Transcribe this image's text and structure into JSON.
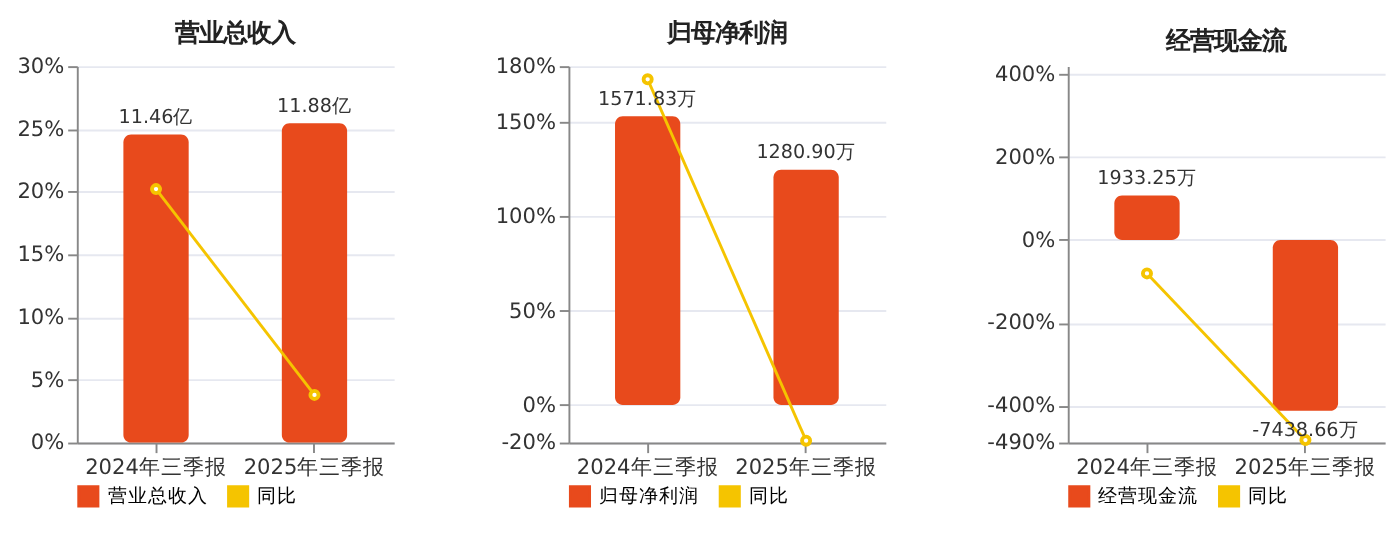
{
  "chart_data": [
    {
      "type": "bar",
      "title": "营业总收入",
      "categories": [
        "2024年三季报",
        "2025年三季报"
      ],
      "ylim": [
        0,
        30
      ],
      "yticks": [
        {
          "value": 0,
          "label": "0%"
        },
        {
          "value": 5,
          "label": "5%"
        },
        {
          "value": 10,
          "label": "10%"
        },
        {
          "value": 15,
          "label": "15%"
        },
        {
          "value": 20,
          "label": "20%"
        },
        {
          "value": 25,
          "label": "25%"
        },
        {
          "value": 30,
          "label": "30%"
        }
      ],
      "y2lim": [
        0,
        14
      ],
      "grid": "y",
      "legend": "bottom",
      "series": [
        {
          "name": "营业总收入",
          "axis": "y2",
          "color": "#e84a1c",
          "values": [
            11.46,
            11.88
          ],
          "value_labels": [
            "11.46亿",
            "11.88亿"
          ]
        },
        {
          "name": "同比",
          "type": "line",
          "axis": "y",
          "color": "#f5c400",
          "marker": "circle",
          "values": [
            20.2,
            3.8
          ]
        }
      ]
    },
    {
      "type": "bar",
      "title": "归母净利润",
      "categories": [
        "2024年三季报",
        "2025年三季报"
      ],
      "ylim": [
        -20,
        180
      ],
      "yticks": [
        {
          "value": -20,
          "label": "-20%"
        },
        {
          "value": 0,
          "label": "0%"
        },
        {
          "value": 50,
          "label": "50%"
        },
        {
          "value": 100,
          "label": "100%"
        },
        {
          "value": 150,
          "label": "150%"
        },
        {
          "value": 180,
          "label": "180%"
        }
      ],
      "y2lim": [
        -205,
        1845
      ],
      "grid": "y",
      "legend": "bottom",
      "series": [
        {
          "name": "归母净利润",
          "axis": "y2",
          "color": "#e84a1c",
          "values": [
            1571.83,
            1280.9
          ],
          "value_labels": [
            "1571.83万",
            "1280.90万"
          ]
        },
        {
          "name": "同比",
          "type": "line",
          "axis": "y",
          "color": "#f5c400",
          "marker": "circle",
          "values": [
            173,
            -19
          ]
        }
      ]
    },
    {
      "type": "bar",
      "title": "经营现金流",
      "categories": [
        "2024年三季报",
        "2025年三季报"
      ],
      "ylim": [
        -490,
        420
      ],
      "yticks": [
        {
          "value": -490,
          "label": "-490%"
        },
        {
          "value": -400,
          "label": "-400%"
        },
        {
          "value": -200,
          "label": "-200%"
        },
        {
          "value": 0,
          "label": "0%"
        },
        {
          "value": 200,
          "label": "200%"
        },
        {
          "value": 400,
          "label": "400%"
        }
      ],
      "y2lim": [
        -8820,
        7560
      ],
      "grid": "y",
      "legend": "bottom",
      "series": [
        {
          "name": "经营现金流",
          "axis": "y2",
          "color": "#e84a1c",
          "values": [
            1933.25,
            -7438.66
          ],
          "value_labels": [
            "1933.25万",
            "-7438.66万"
          ]
        },
        {
          "name": "同比",
          "type": "line",
          "axis": "y",
          "color": "#f5c400",
          "marker": "circle",
          "values": [
            -81,
            -484
          ]
        }
      ]
    }
  ]
}
